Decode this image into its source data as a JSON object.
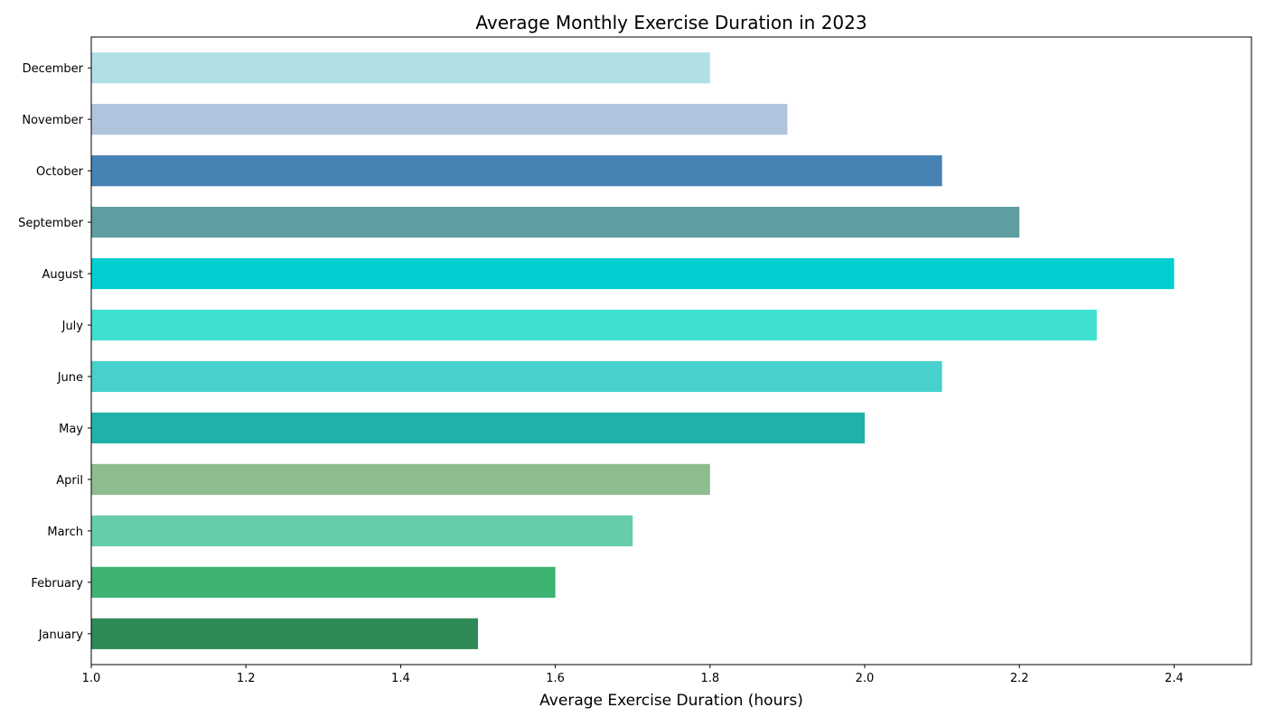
{
  "chart_data": {
    "type": "bar",
    "orientation": "horizontal",
    "title": "Average Monthly Exercise Duration in 2023",
    "xlabel": "Average Exercise Duration (hours)",
    "ylabel": "",
    "xlim": [
      1.0,
      2.5
    ],
    "x_ticks": [
      "1.0",
      "1.2",
      "1.4",
      "1.6",
      "1.8",
      "2.0",
      "2.2",
      "2.4"
    ],
    "grid": false,
    "categories": [
      "January",
      "February",
      "March",
      "April",
      "May",
      "June",
      "July",
      "August",
      "September",
      "October",
      "November",
      "December"
    ],
    "values": [
      1.5,
      1.6,
      1.7,
      1.8,
      2.0,
      2.1,
      2.3,
      2.4,
      2.2,
      2.1,
      1.9,
      1.8
    ],
    "colors": [
      "#2e8b57",
      "#3cb371",
      "#66cdaa",
      "#8fbc8f",
      "#20b2aa",
      "#48d1cc",
      "#40e0d0",
      "#00ced1",
      "#5f9ea0",
      "#4682b4",
      "#b0c4de",
      "#b0e0e6"
    ]
  }
}
